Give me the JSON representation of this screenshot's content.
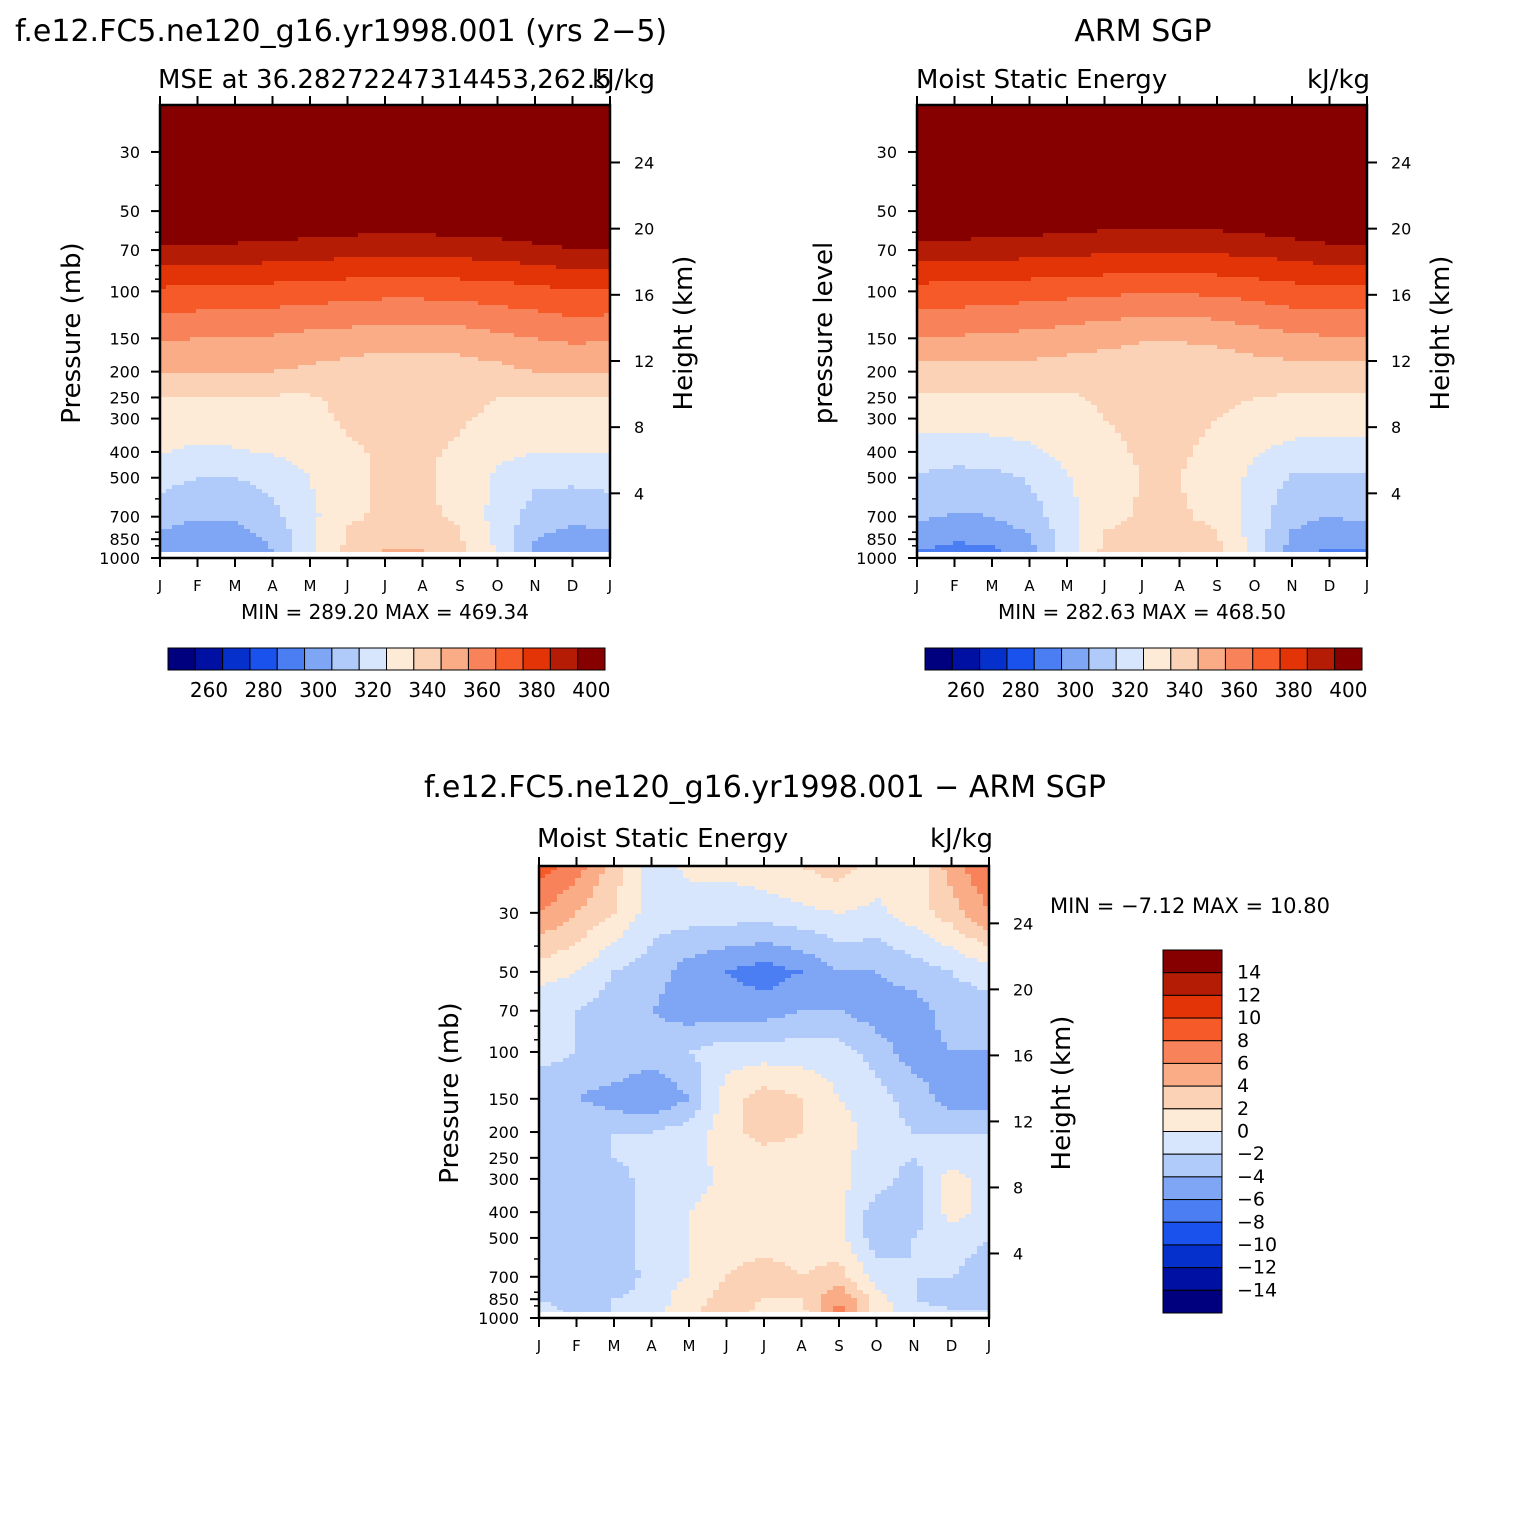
{
  "figure": {
    "panel1_main_title": "f.e12.FC5.ne120_g16.yr1998.001 (yrs 2−5)",
    "panel2_main_title": "ARM SGP",
    "diff_main_title": "f.e12.FC5.ne120_g16.yr1998.001 − ARM SGP"
  },
  "colors": {
    "mse": [
      "#00007f",
      "#0010a3",
      "#0530cc",
      "#1a52ee",
      "#4a7ef2",
      "#7ea6f5",
      "#b0cbf9",
      "#d7e6fc",
      "#fdebd8",
      "#fcd2b6",
      "#faac87",
      "#f8835a",
      "#f65a28",
      "#e33408",
      "#b51c05",
      "#870000"
    ],
    "diff": [
      "#00007f",
      "#0010a3",
      "#0530cc",
      "#1a52ee",
      "#4a7ef2",
      "#7ea6f5",
      "#b0cbf9",
      "#d7e6fc",
      "#fdebd8",
      "#fcd2b6",
      "#faac87",
      "#f8835a",
      "#f65a28",
      "#e33408",
      "#b51c05",
      "#870000"
    ]
  },
  "chart_data": [
    {
      "type": "heatmap",
      "id": "model",
      "main_title": "f.e12.FC5.ne120_g16.yr1998.001 (yrs 2−5)",
      "left_string": "MSE at 36.28272247314453,262.5",
      "right_string": "kJ/kg",
      "ylabel": "Pressure (mb)",
      "right_axis_label": "Height (km)",
      "xticks": [
        "J",
        "F",
        "M",
        "A",
        "M",
        "J",
        "J",
        "A",
        "S",
        "O",
        "N",
        "D",
        "J"
      ],
      "pressure_ticks": [
        "30",
        "50",
        "70",
        "100",
        "150",
        "200",
        "250",
        "300",
        "400",
        "500",
        "700",
        "850",
        "1000"
      ],
      "height_ticks": [
        "24",
        "20",
        "16",
        "12",
        "8",
        "4"
      ],
      "stats": "MIN = 289.20 MAX = 469.34",
      "colorbar_labels": [
        "260",
        "280",
        "300",
        "320",
        "340",
        "360",
        "380",
        "400"
      ],
      "levels": [
        250,
        260,
        270,
        280,
        290,
        300,
        310,
        320,
        330,
        340,
        350,
        360,
        370,
        380,
        390,
        400
      ],
      "ylim": [
        20,
        1000
      ],
      "min": 289.2,
      "max": 469.34,
      "pressure_levels": [
        20,
        30,
        50,
        70,
        100,
        150,
        200,
        250,
        300,
        400,
        500,
        700,
        850,
        1000
      ],
      "values": [
        [
          470,
          470,
          470,
          470,
          470,
          470,
          470,
          470,
          470,
          470,
          470,
          470,
          470
        ],
        [
          445,
          445,
          445,
          445,
          445,
          445,
          445,
          445,
          445,
          445,
          445,
          445,
          445
        ],
        [
          405,
          405,
          404,
          403,
          401,
          400,
          400,
          400,
          401,
          402,
          404,
          407,
          407
        ],
        [
          388,
          387,
          387,
          386,
          385,
          384,
          383,
          383,
          384,
          385,
          387,
          389,
          389
        ],
        [
          368,
          367,
          367,
          366,
          365,
          364,
          363,
          363,
          364,
          365,
          367,
          369,
          369
        ],
        [
          351,
          350,
          350,
          349,
          347,
          346,
          344,
          344,
          345,
          348,
          350,
          352,
          351
        ],
        [
          340,
          340,
          340,
          340,
          338,
          336,
          334,
          334,
          335,
          337,
          340,
          340,
          340
        ],
        [
          329,
          329,
          329,
          329,
          329,
          332,
          334,
          334,
          333,
          330,
          329,
          329,
          329
        ],
        [
          326,
          326,
          326,
          327,
          328,
          331,
          332,
          332,
          331,
          328,
          327,
          326,
          326
        ],
        [
          321,
          318,
          319,
          321,
          324,
          329,
          331,
          331,
          329,
          323,
          320,
          320,
          321
        ],
        [
          313,
          310,
          310,
          313,
          320,
          328,
          331,
          331,
          328,
          318,
          312,
          312,
          313
        ],
        [
          305,
          301,
          302,
          307,
          317,
          329,
          331,
          331,
          329,
          316,
          306,
          303,
          305
        ],
        [
          297,
          293,
          294,
          302,
          318,
          331,
          335,
          335,
          331,
          318,
          300,
          295,
          297
        ],
        [
          289,
          290,
          291,
          299,
          318,
          333,
          343,
          343,
          333,
          319,
          296,
          290,
          290
        ]
      ]
    },
    {
      "type": "heatmap",
      "id": "obs",
      "main_title": "ARM SGP",
      "left_string": "Moist Static Energy",
      "right_string": "kJ/kg",
      "ylabel": "pressure level",
      "right_axis_label": "Height (km)",
      "xticks": [
        "J",
        "F",
        "M",
        "A",
        "M",
        "J",
        "J",
        "A",
        "S",
        "O",
        "N",
        "D",
        "J"
      ],
      "pressure_ticks": [
        "30",
        "50",
        "70",
        "100",
        "150",
        "200",
        "250",
        "300",
        "400",
        "500",
        "700",
        "850",
        "1000"
      ],
      "height_ticks": [
        "24",
        "20",
        "16",
        "12",
        "8",
        "4"
      ],
      "stats": "MIN = 282.63 MAX = 468.50",
      "colorbar_labels": [
        "260",
        "280",
        "300",
        "320",
        "340",
        "360",
        "380",
        "400"
      ],
      "levels": [
        250,
        260,
        270,
        280,
        290,
        300,
        310,
        320,
        330,
        340,
        350,
        360,
        370,
        380,
        390,
        400
      ],
      "ylim": [
        20,
        1000
      ],
      "min": 282.63,
      "max": 468.5,
      "pressure_levels": [
        20,
        30,
        50,
        70,
        100,
        150,
        200,
        250,
        300,
        400,
        500,
        700,
        850,
        1000
      ],
      "values": [
        [
          468,
          468,
          468,
          468,
          468,
          468,
          468,
          468,
          468,
          468,
          468,
          468,
          468
        ],
        [
          440,
          440,
          440,
          440,
          440,
          440,
          440,
          440,
          440,
          440,
          440,
          440,
          440
        ],
        [
          404,
          403,
          402,
          401,
          399,
          398,
          397,
          397,
          398,
          400,
          402,
          405,
          405
        ],
        [
          386,
          385,
          385,
          384,
          383,
          382,
          381,
          381,
          382,
          383,
          385,
          387,
          387
        ],
        [
          366,
          366,
          365,
          364,
          363,
          362,
          361,
          361,
          362,
          364,
          366,
          367,
          367
        ],
        [
          349,
          349,
          348,
          347,
          345,
          343,
          341,
          341,
          342,
          345,
          348,
          349,
          349
        ],
        [
          336,
          336,
          336,
          336,
          335,
          334,
          333,
          333,
          334,
          335,
          336,
          336,
          336
        ],
        [
          329,
          329,
          329,
          329,
          329,
          331,
          333,
          333,
          332,
          330,
          329,
          329,
          329
        ],
        [
          323,
          323,
          324,
          325,
          327,
          330,
          332,
          332,
          330,
          327,
          325,
          324,
          323
        ],
        [
          317,
          315,
          316,
          318,
          323,
          328,
          331,
          331,
          328,
          321,
          317,
          316,
          317
        ],
        [
          309,
          306,
          307,
          311,
          319,
          327,
          330,
          330,
          327,
          317,
          309,
          308,
          309
        ],
        [
          302,
          299,
          300,
          305,
          316,
          328,
          331,
          331,
          328,
          315,
          303,
          300,
          302
        ],
        [
          294,
          291,
          292,
          299,
          315,
          331,
          334,
          334,
          331,
          316,
          298,
          293,
          294
        ],
        [
          287,
          285,
          286,
          296,
          316,
          333,
          341,
          341,
          333,
          316,
          293,
          286,
          287
        ]
      ]
    },
    {
      "type": "heatmap",
      "id": "diff",
      "main_title": "f.e12.FC5.ne120_g16.yr1998.001 − ARM SGP",
      "left_string": "Moist Static Energy",
      "right_string": "kJ/kg",
      "ylabel": "Pressure (mb)",
      "right_axis_label": "Height (km)",
      "xticks": [
        "J",
        "F",
        "M",
        "A",
        "M",
        "J",
        "J",
        "A",
        "S",
        "O",
        "N",
        "D",
        "J"
      ],
      "pressure_ticks": [
        "30",
        "50",
        "70",
        "100",
        "150",
        "200",
        "250",
        "300",
        "400",
        "500",
        "700",
        "850",
        "1000"
      ],
      "height_ticks": [
        "24",
        "20",
        "16",
        "12",
        "8",
        "4"
      ],
      "stats": "MIN = −7.12 MAX = 10.80",
      "colorbar_labels": [
        "14",
        "12",
        "10",
        "8",
        "6",
        "4",
        "2",
        "0",
        "−2",
        "−4",
        "−6",
        "−8",
        "−10",
        "−12",
        "−14"
      ],
      "levels": [
        -14,
        -12,
        -10,
        -8,
        -6,
        -4,
        -2,
        0,
        2,
        4,
        6,
        8,
        10,
        12,
        14
      ],
      "ylim": [
        20,
        1000
      ],
      "min": -7.12,
      "max": 10.8,
      "pressure_levels": [
        20,
        30,
        50,
        70,
        100,
        150,
        200,
        250,
        300,
        400,
        500,
        700,
        850,
        1000
      ],
      "values": [
        [
          9,
          7,
          3,
          -1,
          0.5,
          0.5,
          1,
          2,
          3,
          1,
          0.5,
          5,
          8
        ],
        [
          6,
          4,
          2,
          -1,
          -1,
          -1,
          -1,
          -0.5,
          0,
          -0.5,
          1,
          3,
          6
        ],
        [
          1,
          0,
          -2,
          -3,
          -5,
          -6,
          -7,
          -6,
          -4,
          -4,
          -3,
          -2,
          -1
        ],
        [
          -2,
          -2,
          -3,
          -4,
          -5,
          -5,
          -5,
          -4,
          -4,
          -5,
          -5,
          -3,
          -3
        ],
        [
          -1,
          -2,
          -2,
          -3,
          -2,
          -1,
          -1,
          -1,
          -1,
          -3,
          -5,
          -4,
          -4
        ],
        [
          -4,
          -4,
          -5,
          -6,
          -4,
          1,
          3,
          2,
          0,
          -1,
          -3,
          -5,
          -5
        ],
        [
          -2,
          -2,
          -2,
          -2,
          -1,
          1,
          3,
          2,
          1,
          -1,
          -2,
          -2,
          -2
        ],
        [
          -2,
          -3,
          -2,
          -1,
          -1,
          1,
          1,
          1,
          0.5,
          -1,
          -2,
          -1,
          -1
        ],
        [
          -2,
          -4,
          -3,
          -1,
          -1,
          0.5,
          1,
          1,
          0.5,
          -1,
          -3,
          1,
          -1
        ],
        [
          -2,
          -3,
          -3,
          -1,
          0,
          1,
          1,
          1,
          0.5,
          -3,
          -3,
          1,
          -1
        ],
        [
          -3,
          -3,
          -3,
          -1,
          0,
          1,
          1,
          1,
          0.5,
          -3,
          -2,
          -1,
          -2
        ],
        [
          -2,
          -2,
          -4,
          -1,
          0,
          2,
          3,
          2,
          3,
          -1,
          -2,
          -2,
          -3
        ],
        [
          -2,
          -3,
          -2,
          -1,
          1,
          3,
          2,
          2,
          6,
          1,
          -2,
          -3,
          -3
        ],
        [
          -1,
          -2,
          -2,
          -1,
          2,
          3,
          1,
          1,
          7,
          1,
          -1,
          -1,
          -1
        ]
      ]
    }
  ]
}
